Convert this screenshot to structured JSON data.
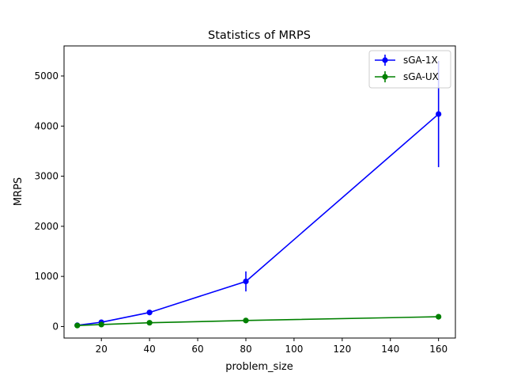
{
  "chart_data": {
    "type": "line",
    "title": "Statistics of MRPS",
    "xlabel": "problem_size",
    "ylabel": "MRPS",
    "xlim": [
      4.5,
      167
    ],
    "ylim": [
      -230,
      5600
    ],
    "xticks": [
      20,
      40,
      60,
      80,
      100,
      120,
      140,
      160
    ],
    "yticks": [
      0,
      1000,
      2000,
      3000,
      4000,
      5000
    ],
    "grid": false,
    "legend_position": "top-right",
    "series": [
      {
        "name": "sGA-1X",
        "color": "#0000ff",
        "x": [
          10,
          20,
          40,
          80,
          160
        ],
        "y": [
          25,
          85,
          280,
          900,
          4240
        ],
        "yerr": [
          10,
          20,
          35,
          200,
          1060
        ]
      },
      {
        "name": "sGA-UX",
        "color": "#008000",
        "x": [
          10,
          20,
          40,
          80,
          160
        ],
        "y": [
          20,
          40,
          75,
          120,
          195
        ],
        "yerr": [
          3,
          5,
          8,
          12,
          18
        ]
      }
    ]
  }
}
